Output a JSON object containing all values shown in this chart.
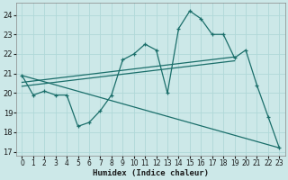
{
  "xlabel": "Humidex (Indice chaleur)",
  "bg_color": "#cce8e8",
  "line_color": "#1a6e6a",
  "grid_color": "#b0d8d8",
  "xlim": [
    -0.5,
    23.5
  ],
  "ylim": [
    16.8,
    24.6
  ],
  "xticks": [
    0,
    1,
    2,
    3,
    4,
    5,
    6,
    7,
    8,
    9,
    10,
    11,
    12,
    13,
    14,
    15,
    16,
    17,
    18,
    19,
    20,
    21,
    22,
    23
  ],
  "yticks": [
    17,
    18,
    19,
    20,
    21,
    22,
    23,
    24
  ],
  "line1_x": [
    0,
    1,
    2,
    3,
    4,
    5,
    6,
    7,
    8,
    9,
    10,
    11,
    12,
    13,
    14,
    15,
    16,
    17,
    18,
    19,
    20,
    21,
    22,
    23
  ],
  "line1_y": [
    20.9,
    19.9,
    20.1,
    19.9,
    19.9,
    18.3,
    18.5,
    19.1,
    19.9,
    21.7,
    22.0,
    22.5,
    22.2,
    20.0,
    23.3,
    24.2,
    23.8,
    23.0,
    23.0,
    21.8,
    22.2,
    20.4,
    18.8,
    17.2
  ],
  "line2_x": [
    0,
    19
  ],
  "line2_y": [
    20.55,
    21.85
  ],
  "line3_x": [
    0,
    19
  ],
  "line3_y": [
    20.35,
    21.65
  ],
  "line4_x": [
    0,
    23
  ],
  "line4_y": [
    20.9,
    17.2
  ]
}
